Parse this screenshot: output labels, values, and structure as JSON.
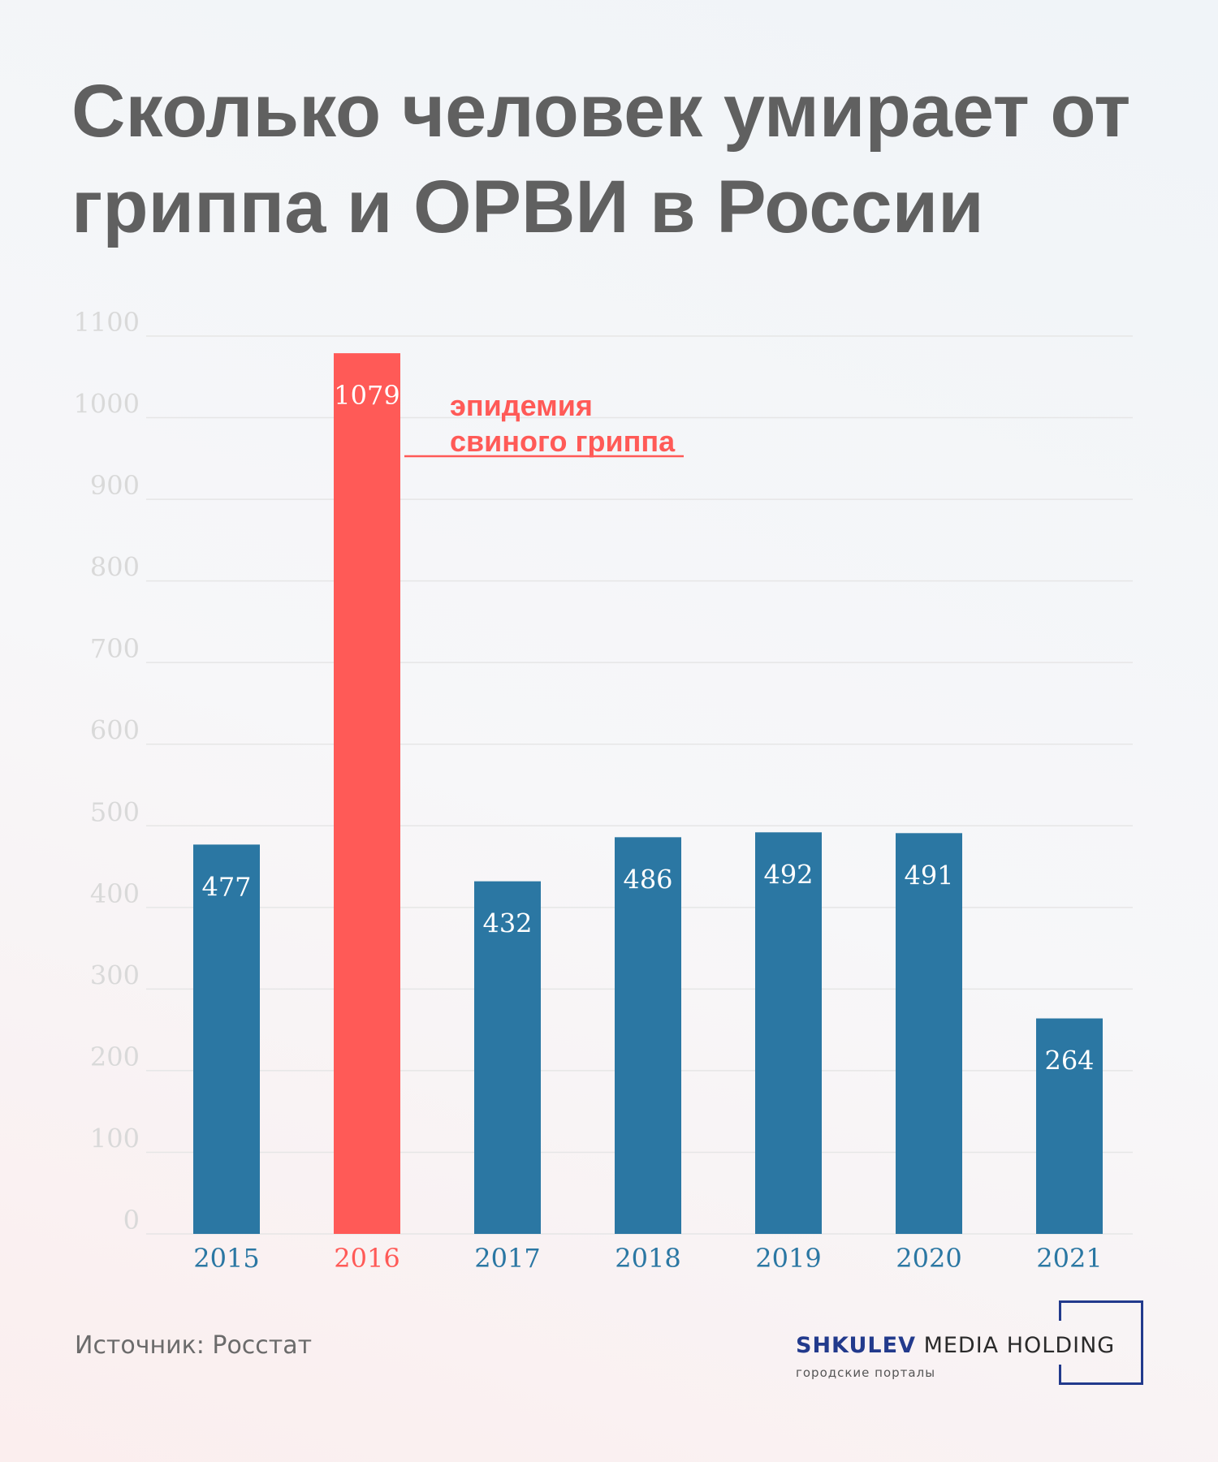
{
  "title": "Сколько человек умирает от гриппа и ОРВИ в России",
  "colors": {
    "bar": "#2b77a3",
    "highlight": "#ff5a57",
    "grid": "#e6e6e6",
    "tick": "#d9d9d9",
    "title": "#606060"
  },
  "chart_data": {
    "type": "bar",
    "title": "Сколько человек умирает от гриппа и ОРВИ в России",
    "xlabel": "",
    "ylabel": "",
    "categories": [
      "2015",
      "2016",
      "2017",
      "2018",
      "2019",
      "2020",
      "2021"
    ],
    "values": [
      477,
      1079,
      432,
      486,
      492,
      491,
      264
    ],
    "highlight_index": 1,
    "ylim": [
      0,
      1100
    ],
    "yticks": [
      0,
      100,
      200,
      300,
      400,
      500,
      600,
      700,
      800,
      900,
      1000,
      1100
    ],
    "grid": true,
    "legend": "none",
    "annotation": {
      "category": "2016",
      "lines": [
        "эпидемия",
        "свиного гриппа"
      ]
    }
  },
  "source": "Источник: Росстат",
  "logo": {
    "brand": "SHKULEV",
    "rest": "MEDIA HOLDING",
    "subtitle": "городские порталы"
  }
}
